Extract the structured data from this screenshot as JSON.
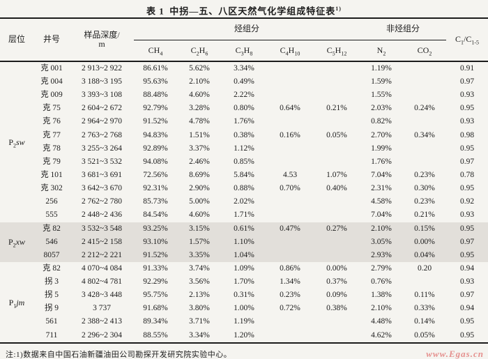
{
  "title": {
    "prefix": "表 1",
    "main": "中拐—五、八区天然气化学组成特征表",
    "sup": "1)"
  },
  "header": {
    "layer": "层位",
    "well": "井号",
    "depth_line1": "样品深度/",
    "depth_line2": "m",
    "hydrocarbon_group": "烃组分",
    "non_hydrocarbon_group": "非烃组分",
    "formulas": {
      "ch4": [
        {
          "t": "CH",
          "s": "4"
        }
      ],
      "c2h6": [
        {
          "t": "C",
          "s": "2"
        },
        {
          "t": "H",
          "s": "6"
        }
      ],
      "c3h8": [
        {
          "t": "C",
          "s": "3"
        },
        {
          "t": "H",
          "s": "8"
        }
      ],
      "c4h10": [
        {
          "t": "C",
          "s": "4"
        },
        {
          "t": "H",
          "s": "10"
        }
      ],
      "c5h12": [
        {
          "t": "C",
          "s": "5"
        },
        {
          "t": "H",
          "s": "12"
        }
      ],
      "n2": [
        {
          "t": "N",
          "s": "2"
        }
      ],
      "co2": [
        {
          "t": "CO",
          "s": "2"
        }
      ],
      "c1c15": [
        {
          "t": "C",
          "s": "1"
        },
        {
          "t": "/C",
          "s": "1-5"
        }
      ]
    }
  },
  "groups": [
    {
      "layer": {
        "base": "P",
        "sub": "2",
        "suffix": "sw"
      },
      "shaded": false,
      "rows": [
        {
          "well": "克 001",
          "depth": "2 913~2 922",
          "ch4": "86.61%",
          "c2h6": "5.62%",
          "c3h8": "3.34%",
          "c4h10": "",
          "c5h12": "",
          "n2": "1.19%",
          "co2": "",
          "c1c15": "0.91"
        },
        {
          "well": "克 004",
          "depth": "3 188~3 195",
          "ch4": "95.63%",
          "c2h6": "2.10%",
          "c3h8": "0.49%",
          "c4h10": "",
          "c5h12": "",
          "n2": "1.59%",
          "co2": "",
          "c1c15": "0.97"
        },
        {
          "well": "克 009",
          "depth": "3 393~3 108",
          "ch4": "88.48%",
          "c2h6": "4.60%",
          "c3h8": "2.22%",
          "c4h10": "",
          "c5h12": "",
          "n2": "1.55%",
          "co2": "",
          "c1c15": "0.93"
        },
        {
          "well": "克 75",
          "depth": "2 604~2 672",
          "ch4": "92.79%",
          "c2h6": "3.28%",
          "c3h8": "0.80%",
          "c4h10": "0.64%",
          "c5h12": "0.21%",
          "n2": "2.03%",
          "co2": "0.24%",
          "c1c15": "0.95"
        },
        {
          "well": "克 76",
          "depth": "2 964~2 970",
          "ch4": "91.52%",
          "c2h6": "4.78%",
          "c3h8": "1.76%",
          "c4h10": "",
          "c5h12": "",
          "n2": "0.82%",
          "co2": "",
          "c1c15": "0.93"
        },
        {
          "well": "克 77",
          "depth": "2 763~2 768",
          "ch4": "94.83%",
          "c2h6": "1.51%",
          "c3h8": "0.38%",
          "c4h10": "0.16%",
          "c5h12": "0.05%",
          "n2": "2.70%",
          "co2": "0.34%",
          "c1c15": "0.98"
        },
        {
          "well": "克 78",
          "depth": "3 255~3 264",
          "ch4": "92.89%",
          "c2h6": "3.37%",
          "c3h8": "1.12%",
          "c4h10": "",
          "c5h12": "",
          "n2": "1.99%",
          "co2": "",
          "c1c15": "0.95"
        },
        {
          "well": "克 79",
          "depth": "3 521~3 532",
          "ch4": "94.08%",
          "c2h6": "2.46%",
          "c3h8": "0.85%",
          "c4h10": "",
          "c5h12": "",
          "n2": "1.76%",
          "co2": "",
          "c1c15": "0.97"
        },
        {
          "well": "克 101",
          "depth": "3 681~3 691",
          "ch4": "72.56%",
          "c2h6": "8.69%",
          "c3h8": "5.84%",
          "c4h10": "4.53",
          "c5h12": "1.07%",
          "n2": "7.04%",
          "co2": "0.23%",
          "c1c15": "0.78"
        },
        {
          "well": "克 302",
          "depth": "3 642~3 670",
          "ch4": "92.31%",
          "c2h6": "2.90%",
          "c3h8": "0.88%",
          "c4h10": "0.70%",
          "c5h12": "0.40%",
          "n2": "2.31%",
          "co2": "0.30%",
          "c1c15": "0.95"
        },
        {
          "well": "256",
          "depth": "2 762~2 780",
          "ch4": "85.73%",
          "c2h6": "5.00%",
          "c3h8": "2.02%",
          "c4h10": "",
          "c5h12": "",
          "n2": "4.58%",
          "co2": "0.23%",
          "c1c15": "0.92"
        },
        {
          "well": "555",
          "depth": "2 448~2 436",
          "ch4": "84.54%",
          "c2h6": "4.60%",
          "c3h8": "1.71%",
          "c4h10": "",
          "c5h12": "",
          "n2": "7.04%",
          "co2": "0.21%",
          "c1c15": "0.93"
        }
      ]
    },
    {
      "layer": {
        "base": "P",
        "sub": "2",
        "suffix": "xw"
      },
      "shaded": true,
      "rows": [
        {
          "well": "克 82",
          "depth": "3 532~3 548",
          "ch4": "93.25%",
          "c2h6": "3.15%",
          "c3h8": "0.61%",
          "c4h10": "0.47%",
          "c5h12": "0.27%",
          "n2": "2.10%",
          "co2": "0.15%",
          "c1c15": "0.95"
        },
        {
          "well": "546",
          "depth": "2 415~2 158",
          "ch4": "93.10%",
          "c2h6": "1.57%",
          "c3h8": "1.10%",
          "c4h10": "",
          "c5h12": "",
          "n2": "3.05%",
          "co2": "0.00%",
          "c1c15": "0.97"
        },
        {
          "well": "8057",
          "depth": "2 212~2 221",
          "ch4": "91.52%",
          "c2h6": "3.35%",
          "c3h8": "1.04%",
          "c4h10": "",
          "c5h12": "",
          "n2": "2.93%",
          "co2": "0.04%",
          "c1c15": "0.95"
        }
      ]
    },
    {
      "layer": {
        "base": "P",
        "sub": "1",
        "suffix": "jm"
      },
      "shaded": false,
      "rows": [
        {
          "well": "克 82",
          "depth": "4 070~4 084",
          "ch4": "91.33%",
          "c2h6": "3.74%",
          "c3h8": "1.09%",
          "c4h10": "0.86%",
          "c5h12": "0.00%",
          "n2": "2.79%",
          "co2": "0.20",
          "c1c15": "0.94"
        },
        {
          "well": "拐 3",
          "depth": "4 802~4 781",
          "ch4": "92.29%",
          "c2h6": "3.56%",
          "c3h8": "1.70%",
          "c4h10": "1.34%",
          "c5h12": "0.37%",
          "n2": "0.76%",
          "co2": "",
          "c1c15": "0.93"
        },
        {
          "well": "拐 5",
          "depth": "3 428~3 448",
          "ch4": "95.75%",
          "c2h6": "2.13%",
          "c3h8": "0.31%",
          "c4h10": "0.23%",
          "c5h12": "0.09%",
          "n2": "1.38%",
          "co2": "0.11%",
          "c1c15": "0.97"
        },
        {
          "well": "拐 9",
          "depth": "3 737",
          "ch4": "91.68%",
          "c2h6": "3.80%",
          "c3h8": "1.00%",
          "c4h10": "0.72%",
          "c5h12": "0.38%",
          "n2": "2.10%",
          "co2": "0.33%",
          "c1c15": "0.94"
        },
        {
          "well": "561",
          "depth": "2 388~2 413",
          "ch4": "89.34%",
          "c2h6": "3.71%",
          "c3h8": "1.19%",
          "c4h10": "",
          "c5h12": "",
          "n2": "4.48%",
          "co2": "0.14%",
          "c1c15": "0.95"
        },
        {
          "well": "711",
          "depth": "2 296~2 304",
          "ch4": "88.55%",
          "c2h6": "3.34%",
          "c3h8": "1.20%",
          "c4h10": "",
          "c5h12": "",
          "n2": "4.62%",
          "co2": "0.05%",
          "c1c15": "0.95"
        }
      ]
    }
  ],
  "footnote": "注:1)数据来自中国石油新疆油田公司勘探开发研究院实验中心。",
  "watermark": "www.Egas.cn",
  "colors": {
    "paper_bg": "#f5f4f0",
    "shaded_band": "#e2dfda",
    "rule": "#1b1b1b",
    "watermark": "#e5908e"
  }
}
